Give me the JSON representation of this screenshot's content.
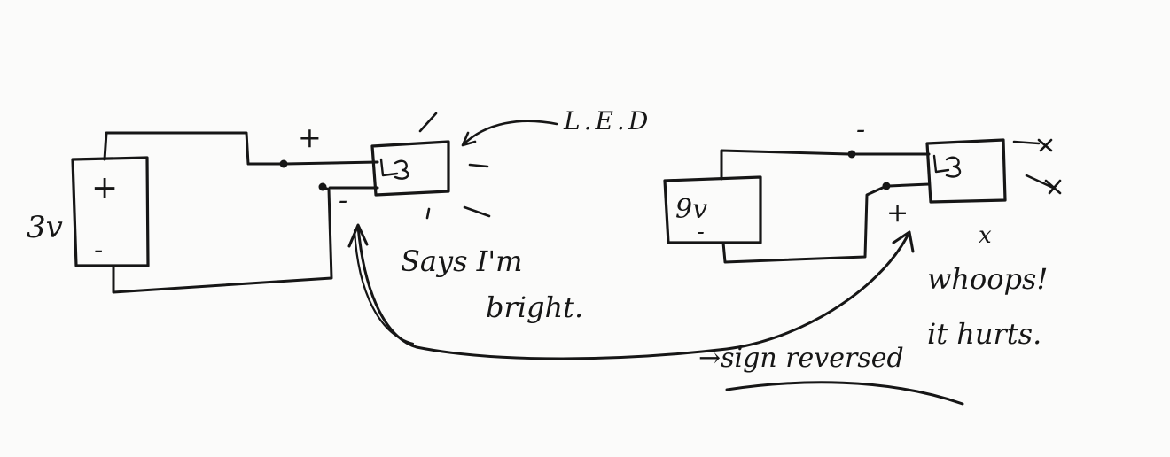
{
  "left_circuit": {
    "battery_voltage": "3v",
    "battery_plus": "+",
    "battery_minus": "-",
    "led_plus_terminal": "+",
    "led_minus_terminal": "-"
  },
  "led_label": "L.E.D",
  "caption_left_line1": "Says I'm",
  "caption_left_line2": "bright.",
  "right_circuit": {
    "battery_voltage": "9v",
    "battery_minus": "-",
    "led_minus_terminal": "-",
    "led_plus_terminal": "+",
    "dead_mark": "x"
  },
  "caption_right_line1": "whoops!",
  "caption_right_line2": "it hurts.",
  "arrow_note": "→sign reversed"
}
